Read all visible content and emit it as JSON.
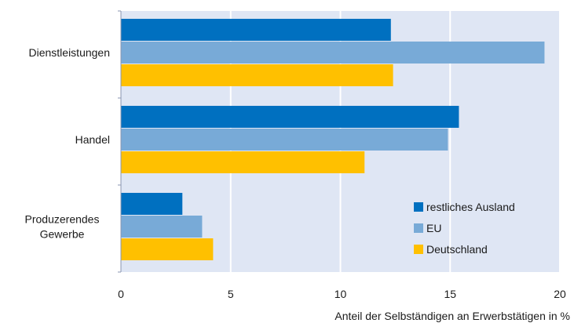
{
  "chart_data": {
    "type": "bar",
    "orientation": "horizontal",
    "title": "",
    "xlabel": "Anteil der Selbständigen an Erwerbstätigen in %",
    "ylabel": "",
    "xlim": [
      0,
      20
    ],
    "xticks": [
      "0",
      "5",
      "10",
      "15",
      "20"
    ],
    "grid": true,
    "legend_position": "bottom-right",
    "categories": [
      [
        "Dienstleistungen"
      ],
      [
        "Handel"
      ],
      [
        "Produzerendes",
        "Gewerbe"
      ]
    ],
    "series": [
      {
        "name": "restliches Ausland",
        "color": "#0070c0",
        "values": [
          12.3,
          15.4,
          2.8
        ]
      },
      {
        "name": "EU",
        "color": "#78aad7",
        "values": [
          19.3,
          14.9,
          3.7
        ]
      },
      {
        "name": "Deutschland",
        "color": "#ffc000",
        "values": [
          12.4,
          11.1,
          4.2
        ]
      }
    ],
    "plot_background": "#dfe6f4",
    "grid_color": "#ffffff"
  }
}
